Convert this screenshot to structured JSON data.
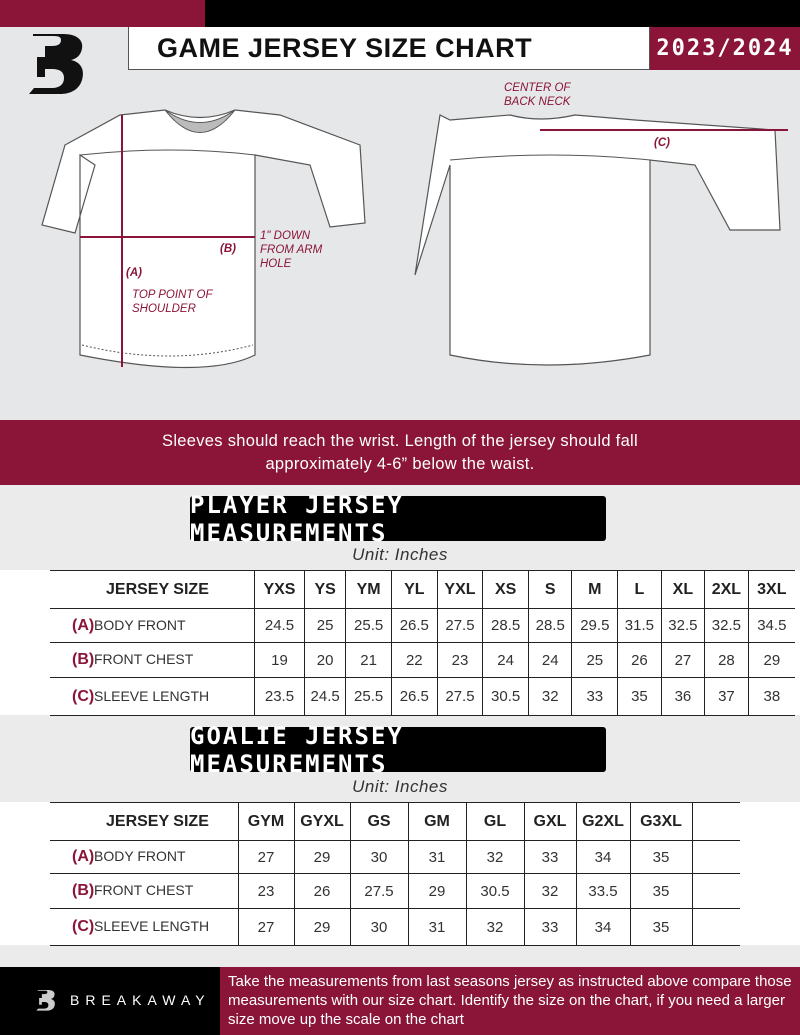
{
  "header": {
    "title": "GAME JERSEY SIZE CHART",
    "season": "2023/2024",
    "logo": "breakaway-b-logo"
  },
  "diagram": {
    "front": {
      "label_a": "(A)",
      "label_a_desc": "TOP POINT OF SHOULDER",
      "label_b": "(B)",
      "label_b_desc": "1\" DOWN FROM ARM HOLE"
    },
    "back": {
      "label_c": "(C)",
      "label_c_desc": "CENTER OF BACK NECK"
    }
  },
  "banner": {
    "line1": "Sleeves should reach the wrist. Length of the jersey should fall",
    "line2": "approximately 4-6” below the waist."
  },
  "player": {
    "title": "PLAYER JERSEY MEASUREMENTS",
    "unit": "Unit: Inches",
    "size_label": "JERSEY SIZE",
    "sizes": [
      "YXS",
      "YS",
      "YM",
      "YL",
      "YXL",
      "XS",
      "S",
      "M",
      "L",
      "XL",
      "2XL",
      "3XL"
    ],
    "rows": [
      {
        "letter": "(A)",
        "name": "BODY FRONT",
        "values": [
          "24.5",
          "25",
          "25.5",
          "26.5",
          "27.5",
          "28.5",
          "28.5",
          "29.5",
          "31.5",
          "32.5",
          "32.5",
          "34.5"
        ]
      },
      {
        "letter": "(B)",
        "name": "FRONT CHEST",
        "values": [
          "19",
          "20",
          "21",
          "22",
          "23",
          "24",
          "24",
          "25",
          "26",
          "27",
          "28",
          "29"
        ]
      },
      {
        "letter": "(C)",
        "name": "SLEEVE LENGTH",
        "values": [
          "23.5",
          "24.5",
          "25.5",
          "26.5",
          "27.5",
          "30.5",
          "32",
          "33",
          "35",
          "36",
          "37",
          "38"
        ]
      }
    ]
  },
  "goalie": {
    "title": "GOALIE JERSEY MEASUREMENTS",
    "unit": "Unit: Inches",
    "size_label": "JERSEY SIZE",
    "sizes": [
      "GYM",
      "GYXL",
      "GS",
      "GM",
      "GL",
      "GXL",
      "G2XL",
      "G3XL",
      ""
    ],
    "rows": [
      {
        "letter": "(A)",
        "name": "BODY FRONT",
        "values": [
          "27",
          "29",
          "30",
          "31",
          "32",
          "33",
          "34",
          "35",
          ""
        ]
      },
      {
        "letter": "(B)",
        "name": "FRONT CHEST",
        "values": [
          "23",
          "26",
          "27.5",
          "29",
          "30.5",
          "32",
          "33.5",
          "35",
          ""
        ]
      },
      {
        "letter": "(C)",
        "name": "SLEEVE LENGTH",
        "values": [
          "27",
          "29",
          "30",
          "31",
          "32",
          "33",
          "34",
          "35",
          ""
        ]
      }
    ]
  },
  "footer": {
    "brand": "BREAKAWAY",
    "note": "Take the measurements from last seasons jersey as instructed above compare those measurements  with our size chart. Identify the size on the chart, if you need a larger size move up the scale on the chart"
  },
  "colors": {
    "maroon": "#8a1538",
    "black": "#000000"
  }
}
